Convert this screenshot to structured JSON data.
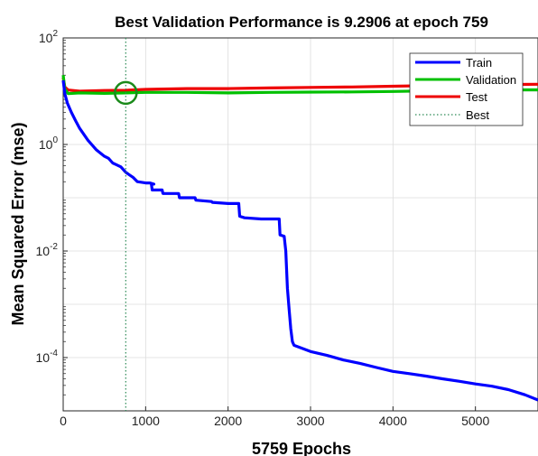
{
  "chart_data": {
    "type": "line",
    "title": "Best Validation Performance is 9.2906 at epoch 759",
    "xlabel": "5759 Epochs",
    "ylabel": "Mean Squared Error  (mse)",
    "xlim": [
      0,
      5759
    ],
    "ylim": [
      1e-05,
      100
    ],
    "yscale": "log",
    "grid": true,
    "legend_position": "top-right",
    "x_ticks": [
      0,
      1000,
      2000,
      3000,
      4000,
      5000
    ],
    "y_ticks": [
      {
        "value": 100,
        "base": "10",
        "exp": "2"
      },
      {
        "value": 1,
        "base": "10",
        "exp": "0"
      },
      {
        "value": 0.01,
        "base": "10",
        "exp": "-2"
      },
      {
        "value": 0.0001,
        "base": "10",
        "exp": "-4"
      }
    ],
    "best_point": {
      "epoch": 759,
      "mse": 9.2906
    },
    "series": [
      {
        "name": "Train",
        "color": "#0000ff",
        "points": [
          [
            0,
            16
          ],
          [
            20,
            9
          ],
          [
            50,
            6
          ],
          [
            100,
            4
          ],
          [
            150,
            2.8
          ],
          [
            200,
            2
          ],
          [
            300,
            1.2
          ],
          [
            400,
            0.8
          ],
          [
            500,
            0.6
          ],
          [
            550,
            0.55
          ],
          [
            600,
            0.45
          ],
          [
            700,
            0.38
          ],
          [
            759,
            0.3
          ],
          [
            800,
            0.27
          ],
          [
            850,
            0.24
          ],
          [
            900,
            0.2
          ],
          [
            1000,
            0.19
          ],
          [
            1050,
            0.19
          ],
          [
            1100,
            0.18
          ],
          [
            1070,
            0.18
          ],
          [
            1080,
            0.14
          ],
          [
            1200,
            0.14
          ],
          [
            1210,
            0.12
          ],
          [
            1400,
            0.12
          ],
          [
            1410,
            0.1
          ],
          [
            1600,
            0.1
          ],
          [
            1610,
            0.09
          ],
          [
            1800,
            0.085
          ],
          [
            1810,
            0.082
          ],
          [
            2000,
            0.078
          ],
          [
            2130,
            0.078
          ],
          [
            2140,
            0.045
          ],
          [
            2200,
            0.042
          ],
          [
            2400,
            0.04
          ],
          [
            2550,
            0.04
          ],
          [
            2620,
            0.04
          ],
          [
            2630,
            0.02
          ],
          [
            2680,
            0.019
          ],
          [
            2700,
            0.01
          ],
          [
            2720,
            0.002
          ],
          [
            2740,
            0.0008
          ],
          [
            2760,
            0.00035
          ],
          [
            2780,
            0.0002
          ],
          [
            2800,
            0.00017
          ],
          [
            3000,
            0.00013
          ],
          [
            3200,
            0.00011
          ],
          [
            3400,
            9e-05
          ],
          [
            3600,
            7.8e-05
          ],
          [
            3800,
            6.5e-05
          ],
          [
            4000,
            5.5e-05
          ],
          [
            4200,
            5e-05
          ],
          [
            4400,
            4.5e-05
          ],
          [
            4600,
            4e-05
          ],
          [
            4800,
            3.6e-05
          ],
          [
            5000,
            3.2e-05
          ],
          [
            5200,
            2.9e-05
          ],
          [
            5400,
            2.5e-05
          ],
          [
            5600,
            2e-05
          ],
          [
            5759,
            1.6e-05
          ]
        ]
      },
      {
        "name": "Validation",
        "color": "#00c000",
        "points": [
          [
            0,
            20
          ],
          [
            20,
            11
          ],
          [
            60,
            9
          ],
          [
            200,
            9.3
          ],
          [
            500,
            9.1
          ],
          [
            759,
            9.29
          ],
          [
            1000,
            9.5
          ],
          [
            1500,
            9.5
          ],
          [
            2000,
            9.3
          ],
          [
            2500,
            9.5
          ],
          [
            3000,
            9.6
          ],
          [
            3500,
            9.7
          ],
          [
            4000,
            9.9
          ],
          [
            4500,
            10.2
          ],
          [
            5000,
            10.4
          ],
          [
            5500,
            10.6
          ],
          [
            5759,
            10.6
          ]
        ]
      },
      {
        "name": "Test",
        "color": "#ee0000",
        "points": [
          [
            0,
            18
          ],
          [
            20,
            12
          ],
          [
            60,
            10.5
          ],
          [
            200,
            10
          ],
          [
            500,
            10.3
          ],
          [
            759,
            10.4
          ],
          [
            1000,
            10.8
          ],
          [
            1500,
            11.2
          ],
          [
            2000,
            11.2
          ],
          [
            2500,
            11.5
          ],
          [
            3000,
            11.8
          ],
          [
            3500,
            12
          ],
          [
            4000,
            12.4
          ],
          [
            4500,
            12.8
          ],
          [
            5000,
            13.1
          ],
          [
            5500,
            13.4
          ],
          [
            5759,
            13.5
          ]
        ]
      },
      {
        "name": "Best",
        "color": "#2e8b57"
      }
    ]
  }
}
